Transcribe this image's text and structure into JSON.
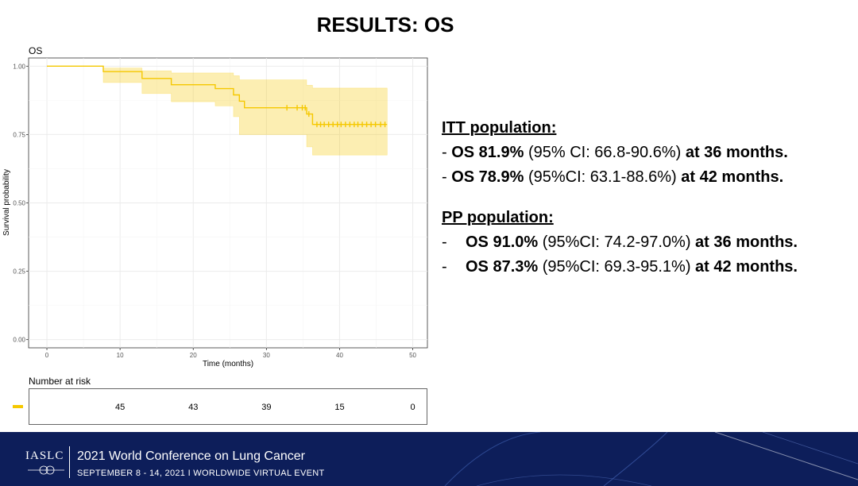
{
  "slide_title": "RESULTS: OS",
  "chart_data": {
    "type": "line",
    "title": "OS",
    "xlabel": "Time (months)",
    "ylabel": "Survival probability",
    "xlim": [
      -2.5,
      52
    ],
    "ylim": [
      -0.03,
      1.03
    ],
    "xticks": [
      0,
      10,
      20,
      30,
      40,
      50
    ],
    "yticks": [
      0.0,
      0.25,
      0.5,
      0.75,
      1.0
    ],
    "ytick_labels": [
      "0.00",
      "0.25",
      "0.50",
      "0.75",
      "1.00"
    ],
    "grid": true,
    "color": "#F5C800",
    "series": [
      {
        "steps": [
          [
            0,
            1.0
          ],
          [
            7.7,
            0.98
          ],
          [
            13,
            0.955
          ],
          [
            17,
            0.932
          ],
          [
            23,
            0.918
          ],
          [
            25.5,
            0.895
          ],
          [
            26.3,
            0.872
          ],
          [
            27,
            0.848
          ],
          [
            35.5,
            0.825
          ],
          [
            36.3,
            0.787
          ],
          [
            46.5,
            0.787
          ]
        ],
        "ci_lower": [
          [
            0,
            1.0
          ],
          [
            7.7,
            0.94
          ],
          [
            13,
            0.9
          ],
          [
            17,
            0.87
          ],
          [
            23,
            0.855
          ],
          [
            25.5,
            0.815
          ],
          [
            26.3,
            0.75
          ],
          [
            35.5,
            0.705
          ],
          [
            36.3,
            0.675
          ],
          [
            46.5,
            0.675
          ]
        ],
        "ci_upper": [
          [
            0,
            1.0
          ],
          [
            7.7,
            0.993
          ],
          [
            13,
            0.983
          ],
          [
            17,
            0.975
          ],
          [
            25.5,
            0.965
          ],
          [
            26.3,
            0.95
          ],
          [
            35.5,
            0.93
          ],
          [
            36.3,
            0.92
          ],
          [
            46.5,
            0.92
          ]
        ],
        "censor_times": [
          32.8,
          34.2,
          34.9,
          35.3,
          35.8,
          36.9,
          37.4,
          37.9,
          38.5,
          39.1,
          39.7,
          40.2,
          40.8,
          41.4,
          42.0,
          42.5,
          43.1,
          43.7,
          44.3,
          44.9,
          45.6,
          46.2
        ]
      }
    ],
    "risk_table": {
      "title": "Number at risk",
      "times": [
        10,
        20,
        30,
        40,
        50
      ],
      "counts": [
        45,
        43,
        39,
        15,
        0
      ]
    }
  },
  "results": {
    "itt": {
      "heading": "ITT population:",
      "lines": [
        {
          "prefix": "- ",
          "bold1": "OS 81.9%",
          "plain": " (95% CI: 66.8-90.6%) ",
          "bold2": "at 36 months."
        },
        {
          "prefix": "- ",
          "bold1": "OS 78.9%",
          "plain": " (95%CI: 63.1-88.6%) ",
          "bold2": "at 42 months."
        }
      ]
    },
    "pp": {
      "heading": "PP population:",
      "lines": [
        {
          "prefix": "-",
          "bold1": "OS 91.0%",
          "plain": " (95%CI: 74.2-97.0%) ",
          "bold2": "at 36 months."
        },
        {
          "prefix": "-",
          "bold1": "OS 87.3%",
          "plain": " (95%CI: 69.3-95.1%) ",
          "bold2": "at 42 months."
        }
      ]
    }
  },
  "footer": {
    "logo": "IASLC",
    "conference": "2021 World Conference on Lung Cancer",
    "dates": "SEPTEMBER 8 - 14, 2021 I WORLDWIDE VIRTUAL EVENT",
    "background": "#0d1e5a"
  }
}
